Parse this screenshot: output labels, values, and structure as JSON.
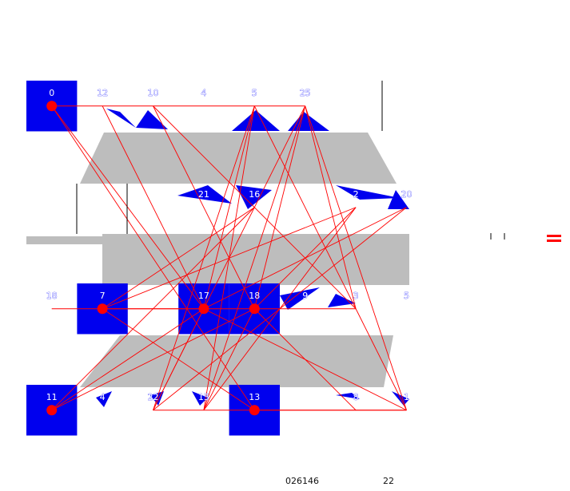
{
  "grid": {
    "columns": 8,
    "rows": 4,
    "cells": [
      {
        "row": 0,
        "col": 0,
        "label": "0",
        "filled": true,
        "dot": true
      },
      {
        "row": 0,
        "col": 1,
        "label": "12",
        "filled": false,
        "dot": false
      },
      {
        "row": 0,
        "col": 2,
        "label": "10",
        "filled": false,
        "dot": false
      },
      {
        "row": 0,
        "col": 3,
        "label": "4",
        "filled": false,
        "dot": false
      },
      {
        "row": 0,
        "col": 4,
        "label": "5",
        "filled": false,
        "dot": false
      },
      {
        "row": 0,
        "col": 5,
        "label": "25",
        "filled": false,
        "dot": false
      },
      {
        "row": 1,
        "col": 3,
        "label": "21",
        "filled": false,
        "dot": false
      },
      {
        "row": 1,
        "col": 4,
        "label": "16",
        "filled": false,
        "dot": false
      },
      {
        "row": 1,
        "col": 6,
        "label": "2",
        "filled": false,
        "dot": false
      },
      {
        "row": 1,
        "col": 7,
        "label": "20",
        "filled": false,
        "dot": false
      },
      {
        "row": 2,
        "col": 0,
        "label": "18",
        "filled": false,
        "dot": false
      },
      {
        "row": 2,
        "col": 1,
        "label": "7",
        "filled": true,
        "dot": true
      },
      {
        "row": 2,
        "col": 3,
        "label": "17",
        "filled": true,
        "dot": true
      },
      {
        "row": 2,
        "col": 4,
        "label": "18",
        "filled": true,
        "dot": true
      },
      {
        "row": 2,
        "col": 5,
        "label": "9",
        "filled": false,
        "dot": false
      },
      {
        "row": 2,
        "col": 6,
        "label": "3",
        "filled": false,
        "dot": false
      },
      {
        "row": 2,
        "col": 7,
        "label": "5",
        "filled": false,
        "dot": false
      },
      {
        "row": 3,
        "col": 0,
        "label": "11",
        "filled": true,
        "dot": true
      },
      {
        "row": 3,
        "col": 1,
        "label": "4",
        "filled": false,
        "dot": false
      },
      {
        "row": 3,
        "col": 2,
        "label": "22",
        "filled": false,
        "dot": false
      },
      {
        "row": 3,
        "col": 3,
        "label": "15",
        "filled": false,
        "dot": false
      },
      {
        "row": 3,
        "col": 4,
        "label": "13",
        "filled": true,
        "dot": true
      },
      {
        "row": 3,
        "col": 6,
        "label": "8",
        "filled": false,
        "dot": false
      },
      {
        "row": 3,
        "col": 7,
        "label": "1",
        "filled": false,
        "dot": false
      }
    ]
  },
  "connections": [
    [
      0,
      0,
      0,
      5
    ],
    [
      0,
      0,
      2,
      3
    ],
    [
      0,
      0,
      3,
      4
    ],
    [
      0,
      1,
      2,
      3
    ],
    [
      0,
      2,
      2,
      4
    ],
    [
      0,
      2,
      2,
      6
    ],
    [
      0,
      4,
      2,
      3
    ],
    [
      0,
      4,
      3,
      3
    ],
    [
      0,
      4,
      3,
      2
    ],
    [
      0,
      4,
      2,
      6
    ],
    [
      0,
      5,
      2,
      4
    ],
    [
      0,
      5,
      3,
      3
    ],
    [
      0,
      5,
      3,
      2
    ],
    [
      0,
      5,
      3,
      7
    ],
    [
      0,
      5,
      2,
      6
    ],
    [
      2,
      1,
      2,
      3
    ],
    [
      2,
      1,
      1,
      6
    ],
    [
      2,
      1,
      3,
      4
    ],
    [
      2,
      1,
      1,
      4
    ],
    [
      2,
      3,
      3,
      0
    ],
    [
      2,
      3,
      1,
      7
    ],
    [
      2,
      3,
      3,
      2
    ],
    [
      2,
      3,
      3,
      7
    ],
    [
      2,
      4,
      3,
      3
    ],
    [
      2,
      4,
      1,
      6
    ],
    [
      2,
      4,
      3,
      6
    ],
    [
      2,
      0,
      2,
      6
    ],
    [
      3,
      0,
      1,
      4
    ],
    [
      3,
      0,
      2,
      4
    ],
    [
      3,
      2,
      1,
      7
    ],
    [
      3,
      2,
      3,
      7
    ],
    [
      3,
      3,
      1,
      6
    ],
    [
      3,
      4,
      3,
      7
    ],
    [
      2,
      6,
      3,
      7
    ]
  ],
  "footer": {
    "left_text": "026146",
    "right_text": "22"
  },
  "colors": {
    "cell_fill": "#0000ee",
    "dot": "#ff0000",
    "connection": "#ff0000",
    "band": "#bdbdbd",
    "marker": "#ff0000"
  }
}
